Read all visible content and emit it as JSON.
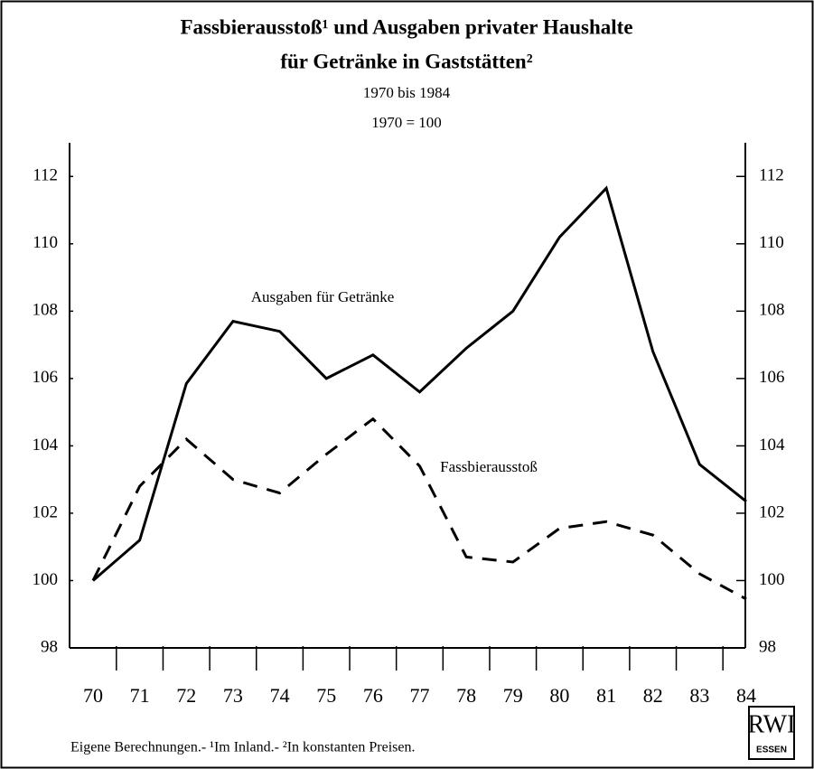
{
  "chart_data": {
    "type": "line",
    "title": [
      "Fassbierausstoß¹ und Ausgaben privater Haushalte",
      "für Getränke in Gaststätten²"
    ],
    "subtitle": [
      "1970 bis 1984",
      "1970 = 100"
    ],
    "categories": [
      "70",
      "71",
      "72",
      "73",
      "74",
      "75",
      "76",
      "77",
      "78",
      "79",
      "80",
      "81",
      "82",
      "83",
      "84"
    ],
    "series": [
      {
        "name": "Ausgaben für Getränke",
        "color": "#000000",
        "dash": "solid",
        "values": [
          100,
          101.2,
          105.85,
          107.7,
          107.4,
          106.0,
          106.7,
          105.6,
          106.9,
          108.0,
          110.2,
          111.65,
          106.8,
          103.45,
          102.35
        ]
      },
      {
        "name": "Fassbierausstoß",
        "color": "#000000",
        "dash": "dashed",
        "values": [
          100,
          102.8,
          104.2,
          103.0,
          102.6,
          103.75,
          104.8,
          103.4,
          100.7,
          100.55,
          101.55,
          101.75,
          101.35,
          100.2,
          99.45
        ]
      }
    ],
    "ylim": [
      98,
      113
    ],
    "yticks": [
      98,
      100,
      102,
      104,
      106,
      108,
      110,
      112
    ],
    "y2lim": [
      98,
      113
    ],
    "y2ticks": [
      98,
      100,
      102,
      104,
      106,
      108,
      110,
      112
    ],
    "footnote": "Eigene Berechnungen.- ¹Im Inland.- ²In konstanten Preisen.",
    "logo": [
      "RWI",
      "ESSEN"
    ]
  }
}
